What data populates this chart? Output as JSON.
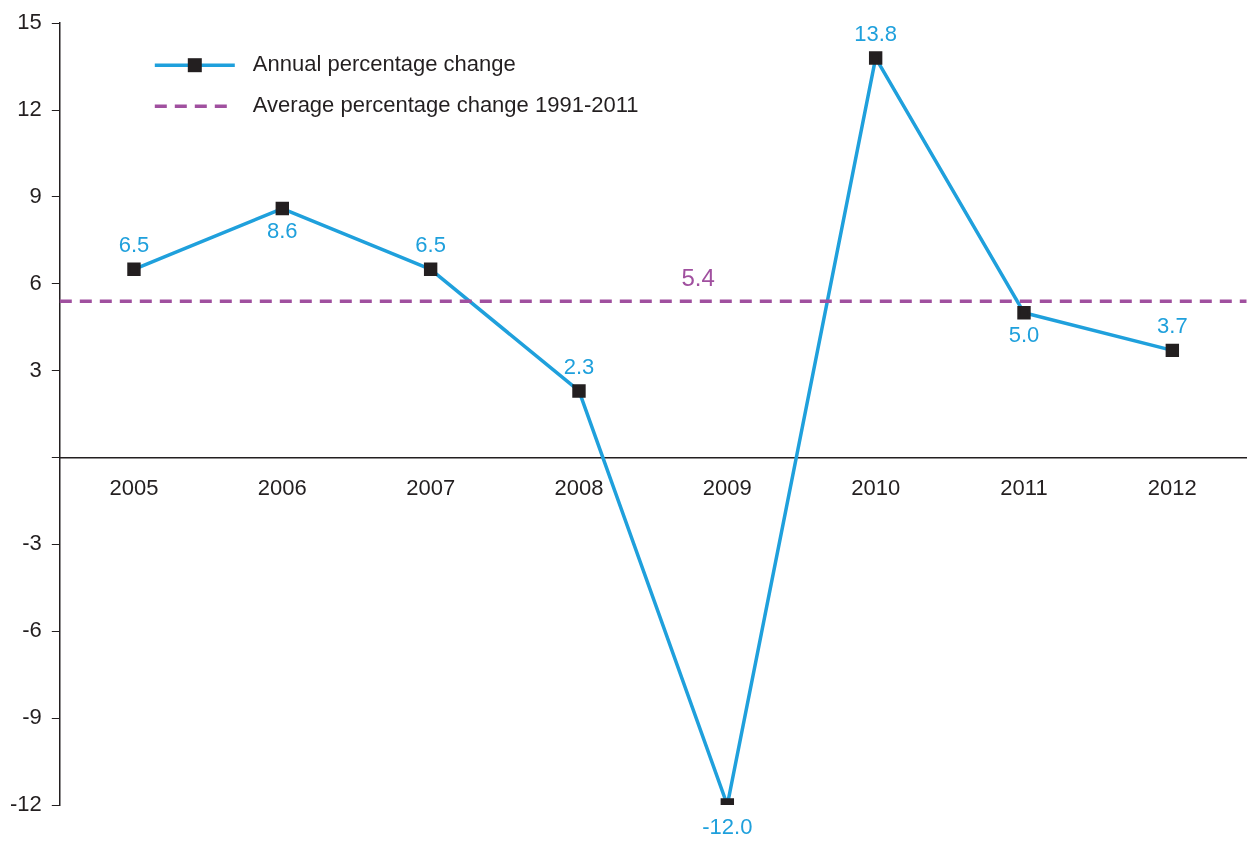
{
  "chart_data": {
    "type": "line",
    "categories": [
      "2005",
      "2006",
      "2007",
      "2008",
      "2009",
      "2010",
      "2011",
      "2012"
    ],
    "series": [
      {
        "name": "Annual percentage change",
        "color": "#1fa0dc",
        "values": [
          6.5,
          8.6,
          6.5,
          2.3,
          -12.0,
          13.8,
          5.0,
          3.7
        ],
        "value_labels": [
          "6.5",
          "8.6",
          "6.5",
          "2.3",
          "-12.0",
          "13.8",
          "5.0",
          "3.7"
        ]
      }
    ],
    "marker": "square",
    "line_style": "solid",
    "ylim": [
      -12,
      15
    ],
    "yticks": [
      -12,
      -9,
      -6,
      -3,
      {
        "value": 0,
        "label": null
      },
      3,
      6,
      9,
      12,
      15
    ],
    "ref_lines": [
      {
        "axis": "y",
        "value": 5.4,
        "label": "Average percentage change 1991-2011",
        "color": "#a0509f",
        "line_style": "dashed"
      }
    ],
    "annotations": [
      {
        "text": "5.4",
        "y": 5.4
      }
    ],
    "grid": false,
    "legend": "top left"
  }
}
